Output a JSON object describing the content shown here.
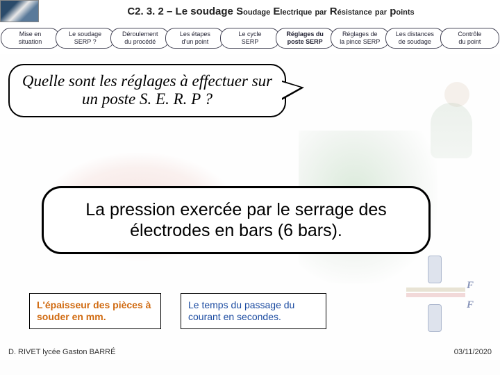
{
  "header": {
    "code": "C2. 3. 2 – ",
    "main": "Le soudage",
    "s": "S",
    "sub1": "oudage",
    "e": "E",
    "sub2": "lectrique",
    "par1": "par",
    "r": "R",
    "sub3": "ésistance",
    "par2": "par",
    "p": "p",
    "sub4": "oints"
  },
  "nav": [
    {
      "l1": "Mise en",
      "l2": "situation",
      "active": false
    },
    {
      "l1": "Le soudage",
      "l2": "SERP ?",
      "active": false
    },
    {
      "l1": "Déroulement",
      "l2": "du procédé",
      "active": false
    },
    {
      "l1": "Les étapes",
      "l2": "d'un point",
      "active": false
    },
    {
      "l1": "Le cycle",
      "l2": "SERP",
      "active": false
    },
    {
      "l1": "Réglages du",
      "l2": "poste SERP",
      "active": true
    },
    {
      "l1": "Réglages de",
      "l2": "la pince SERP",
      "active": false
    },
    {
      "l1": "Les distances",
      "l2": "de soudage",
      "active": false
    },
    {
      "l1": "Contrôle",
      "l2": "du point",
      "active": false
    }
  ],
  "speech": "Quelle sont les réglages à effectuer sur un poste S. E. R. P ?",
  "bigBox": "La pression exercée par le serrage des électrodes en bars (6 bars).",
  "orangeBox": "L'épaisseur des pièces à souder  en mm.",
  "blueBox": "Le temps du passage du courant en secondes.",
  "footer": {
    "left": "D. RIVET lycée Gaston BARRÉ",
    "right": "03/11/2020"
  },
  "forceLabel": "F"
}
